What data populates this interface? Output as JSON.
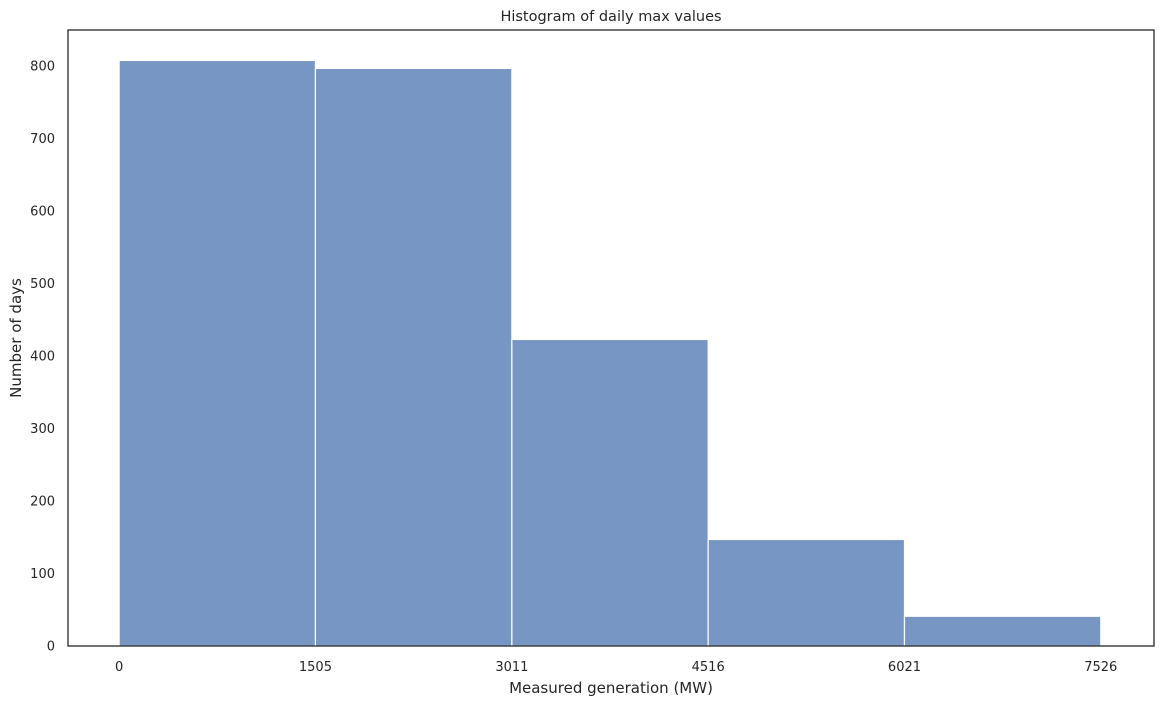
{
  "chart_data": {
    "type": "bar",
    "title": "Histogram of daily max values",
    "xlabel": "Measured generation (MW)",
    "ylabel": "Number of days",
    "bin_edges": [
      0,
      1505,
      3011,
      4516,
      6021,
      7526
    ],
    "values": [
      808,
      797,
      423,
      147,
      41
    ],
    "x_tick_labels": [
      "0",
      "1505",
      "3011",
      "4516",
      "6021",
      "7526"
    ],
    "y_ticks": [
      0,
      100,
      200,
      300,
      400,
      500,
      600,
      700,
      800
    ],
    "xlim": [
      -392,
      7934
    ],
    "ylim": [
      0,
      850
    ],
    "grid": false,
    "bar_color": "#7896c4",
    "bar_edge_color": "#ffffff",
    "axes_color": "#262626"
  }
}
